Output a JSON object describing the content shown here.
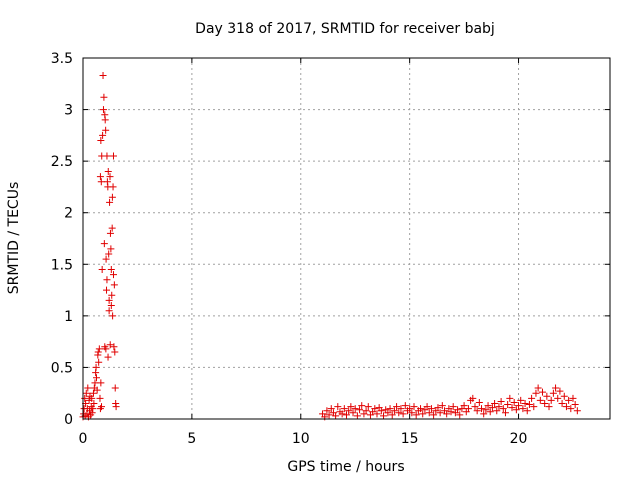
{
  "chart_data": {
    "type": "scatter",
    "title": "Day 318 of 2017, SRMTID for receiver babj",
    "xlabel": "GPS time / hours",
    "ylabel": "SRMTID / TECUs",
    "xlim": [
      0,
      24.2
    ],
    "ylim": [
      0,
      3.5
    ],
    "x_ticks": [
      0,
      5,
      10,
      15,
      20
    ],
    "x_tick_labels": [
      "0",
      "5",
      "10",
      "15",
      "20"
    ],
    "y_ticks": [
      0,
      0.5,
      1,
      1.5,
      2,
      2.5,
      3,
      3.5
    ],
    "y_tick_labels": [
      "0",
      "0.5",
      "1",
      "1.5",
      "2",
      "2.5",
      "3",
      "3.5"
    ],
    "grid": true,
    "marker": "+",
    "colors": {
      "series": "#e00000",
      "grid": "#a0a0a0",
      "axis": "#000000"
    },
    "series": [
      {
        "points": [
          [
            0.0,
            0.02
          ],
          [
            0.03,
            0.05
          ],
          [
            0.05,
            0.1
          ],
          [
            0.08,
            0.2
          ],
          [
            0.1,
            0.03
          ],
          [
            0.12,
            0.15
          ],
          [
            0.15,
            0.25
          ],
          [
            0.18,
            0.05
          ],
          [
            0.2,
            0.1
          ],
          [
            0.22,
            0.3
          ],
          [
            0.25,
            0.02
          ],
          [
            0.28,
            0.18
          ],
          [
            0.3,
            0.08
          ],
          [
            0.32,
            0.22
          ],
          [
            0.35,
            0.04
          ],
          [
            0.38,
            0.12
          ],
          [
            0.4,
            0.2
          ],
          [
            0.42,
            0.06
          ],
          [
            0.45,
            0.1
          ],
          [
            0.48,
            0.25
          ],
          [
            0.5,
            0.15
          ],
          [
            0.52,
            0.3
          ],
          [
            0.55,
            0.35
          ],
          [
            0.58,
            0.45
          ],
          [
            0.6,
            0.5
          ],
          [
            0.62,
            0.4
          ],
          [
            0.65,
            0.28
          ],
          [
            0.68,
            0.62
          ],
          [
            0.7,
            0.65
          ],
          [
            0.72,
            0.55
          ],
          [
            0.75,
            0.68
          ],
          [
            0.78,
            0.2
          ],
          [
            0.8,
            0.1
          ],
          [
            0.82,
            0.35
          ],
          [
            0.85,
            0.12
          ],
          [
            0.8,
            2.35
          ],
          [
            0.82,
            2.7
          ],
          [
            0.84,
            2.3
          ],
          [
            0.86,
            2.55
          ],
          [
            0.88,
            1.45
          ],
          [
            0.9,
            2.75
          ],
          [
            0.92,
            3.33
          ],
          [
            0.94,
            3.0
          ],
          [
            0.96,
            3.12
          ],
          [
            0.98,
            1.7
          ],
          [
            1.0,
            2.95
          ],
          [
            1.02,
            2.9
          ],
          [
            1.04,
            2.8
          ],
          [
            1.06,
            1.55
          ],
          [
            1.08,
            1.25
          ],
          [
            1.1,
            2.55
          ],
          [
            1.12,
            2.3
          ],
          [
            1.14,
            2.25
          ],
          [
            1.16,
            2.4
          ],
          [
            1.18,
            1.6
          ],
          [
            1.2,
            1.05
          ],
          [
            1.22,
            2.1
          ],
          [
            1.24,
            2.35
          ],
          [
            1.26,
            1.8
          ],
          [
            1.28,
            1.65
          ],
          [
            1.3,
            1.45
          ],
          [
            1.32,
            1.2
          ],
          [
            1.34,
            1.85
          ],
          [
            1.36,
            1.0
          ],
          [
            1.38,
            2.25
          ],
          [
            1.4,
            2.55
          ],
          [
            1.42,
            0.7
          ],
          [
            1.44,
            1.3
          ],
          [
            1.46,
            0.65
          ],
          [
            1.48,
            0.3
          ],
          [
            1.5,
            0.15
          ],
          [
            1.52,
            0.12
          ],
          [
            1.0,
            0.7
          ],
          [
            1.05,
            0.68
          ],
          [
            1.1,
            1.35
          ],
          [
            1.15,
            0.6
          ],
          [
            1.2,
            1.15
          ],
          [
            1.25,
            0.72
          ],
          [
            1.3,
            1.1
          ],
          [
            1.35,
            2.15
          ],
          [
            1.4,
            1.4
          ],
          [
            11.0,
            0.05
          ],
          [
            11.1,
            0.02
          ],
          [
            11.2,
            0.08
          ],
          [
            11.3,
            0.04
          ],
          [
            11.4,
            0.1
          ],
          [
            11.5,
            0.06
          ],
          [
            11.6,
            0.03
          ],
          [
            11.7,
            0.12
          ],
          [
            11.8,
            0.07
          ],
          [
            11.9,
            0.05
          ],
          [
            12.0,
            0.1
          ],
          [
            12.1,
            0.04
          ],
          [
            12.2,
            0.08
          ],
          [
            12.3,
            0.12
          ],
          [
            12.4,
            0.06
          ],
          [
            12.5,
            0.1
          ],
          [
            12.6,
            0.03
          ],
          [
            12.7,
            0.09
          ],
          [
            12.8,
            0.13
          ],
          [
            12.9,
            0.05
          ],
          [
            13.0,
            0.08
          ],
          [
            13.1,
            0.12
          ],
          [
            13.2,
            0.04
          ],
          [
            13.3,
            0.07
          ],
          [
            13.4,
            0.1
          ],
          [
            13.5,
            0.05
          ],
          [
            13.6,
            0.11
          ],
          [
            13.7,
            0.08
          ],
          [
            13.8,
            0.03
          ],
          [
            13.9,
            0.09
          ],
          [
            14.0,
            0.06
          ],
          [
            14.1,
            0.1
          ],
          [
            14.2,
            0.04
          ],
          [
            14.3,
            0.08
          ],
          [
            14.4,
            0.12
          ],
          [
            14.5,
            0.06
          ],
          [
            14.6,
            0.1
          ],
          [
            14.7,
            0.05
          ],
          [
            14.8,
            0.13
          ],
          [
            14.9,
            0.08
          ],
          [
            15.0,
            0.1
          ],
          [
            15.1,
            0.06
          ],
          [
            15.2,
            0.12
          ],
          [
            15.3,
            0.04
          ],
          [
            15.4,
            0.08
          ],
          [
            15.5,
            0.1
          ],
          [
            15.6,
            0.05
          ],
          [
            15.7,
            0.09
          ],
          [
            15.8,
            0.12
          ],
          [
            15.9,
            0.06
          ],
          [
            16.0,
            0.1
          ],
          [
            16.1,
            0.04
          ],
          [
            16.2,
            0.08
          ],
          [
            16.3,
            0.11
          ],
          [
            16.4,
            0.06
          ],
          [
            16.5,
            0.13
          ],
          [
            16.6,
            0.08
          ],
          [
            16.7,
            0.05
          ],
          [
            16.8,
            0.1
          ],
          [
            16.9,
            0.07
          ],
          [
            17.0,
            0.12
          ],
          [
            17.1,
            0.06
          ],
          [
            17.2,
            0.09
          ],
          [
            17.3,
            0.04
          ],
          [
            17.4,
            0.1
          ],
          [
            17.5,
            0.13
          ],
          [
            17.6,
            0.07
          ],
          [
            17.7,
            0.1
          ],
          [
            17.8,
            0.18
          ],
          [
            17.9,
            0.2
          ],
          [
            18.0,
            0.12
          ],
          [
            18.1,
            0.08
          ],
          [
            18.2,
            0.16
          ],
          [
            18.3,
            0.1
          ],
          [
            18.4,
            0.05
          ],
          [
            18.5,
            0.09
          ],
          [
            18.6,
            0.13
          ],
          [
            18.7,
            0.07
          ],
          [
            18.8,
            0.11
          ],
          [
            18.9,
            0.15
          ],
          [
            19.0,
            0.08
          ],
          [
            19.1,
            0.12
          ],
          [
            19.2,
            0.17
          ],
          [
            19.3,
            0.1
          ],
          [
            19.4,
            0.06
          ],
          [
            19.5,
            0.14
          ],
          [
            19.6,
            0.2
          ],
          [
            19.7,
            0.11
          ],
          [
            19.8,
            0.16
          ],
          [
            19.9,
            0.09
          ],
          [
            20.0,
            0.13
          ],
          [
            20.1,
            0.18
          ],
          [
            20.2,
            0.1
          ],
          [
            20.3,
            0.15
          ],
          [
            20.4,
            0.08
          ],
          [
            20.5,
            0.14
          ],
          [
            20.6,
            0.2
          ],
          [
            20.7,
            0.12
          ],
          [
            20.8,
            0.25
          ],
          [
            20.9,
            0.3
          ],
          [
            21.0,
            0.18
          ],
          [
            21.1,
            0.26
          ],
          [
            21.2,
            0.15
          ],
          [
            21.3,
            0.22
          ],
          [
            21.4,
            0.12
          ],
          [
            21.5,
            0.18
          ],
          [
            21.6,
            0.25
          ],
          [
            21.7,
            0.3
          ],
          [
            21.8,
            0.2
          ],
          [
            21.9,
            0.27
          ],
          [
            22.0,
            0.15
          ],
          [
            22.1,
            0.22
          ],
          [
            22.2,
            0.12
          ],
          [
            22.3,
            0.18
          ],
          [
            22.4,
            0.1
          ],
          [
            22.5,
            0.2
          ],
          [
            22.6,
            0.14
          ],
          [
            22.7,
            0.08
          ]
        ]
      }
    ]
  }
}
